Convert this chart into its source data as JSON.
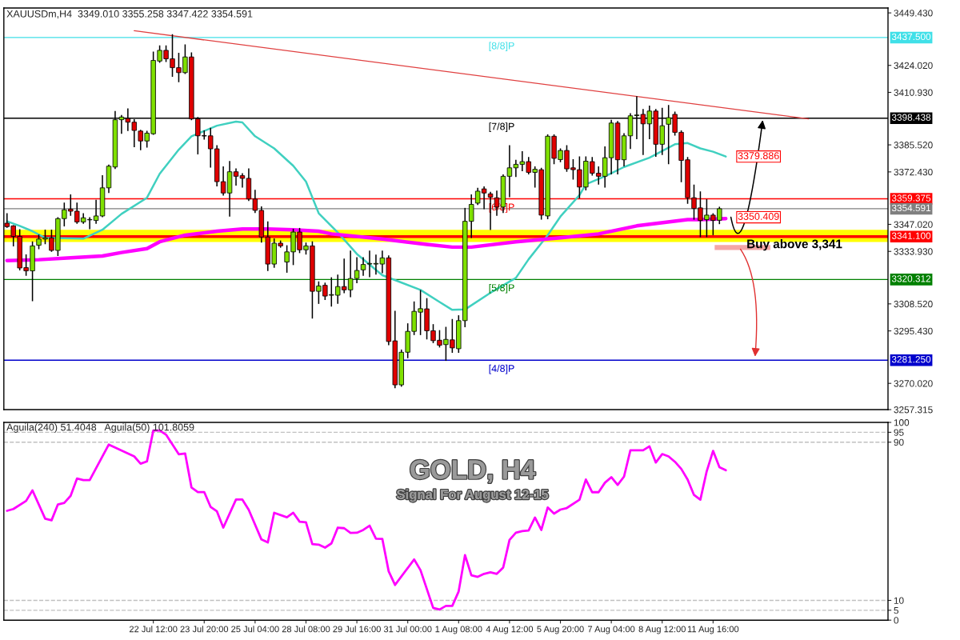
{
  "chart_data": [
    {
      "type": "candlestick",
      "title": "XAUUSDm,H4  3349.010 3355.258 3347.422 3354.591",
      "tick_labels": "y",
      "categories": [
        null,
        null,
        null,
        null,
        null,
        null,
        null,
        null,
        null,
        null,
        null,
        null,
        null,
        null,
        null,
        null,
        null,
        null,
        null,
        null,
        null,
        null,
        null,
        null,
        null,
        null,
        null,
        null,
        null,
        null,
        null,
        null,
        null,
        null,
        null,
        null,
        null,
        null,
        null,
        null,
        null,
        null,
        null,
        null,
        null,
        null,
        null,
        null,
        null,
        null,
        null,
        null,
        null,
        null,
        null,
        null,
        null,
        null,
        null,
        null,
        null,
        null,
        null,
        null,
        null,
        null,
        null,
        null,
        null,
        null,
        null,
        null,
        null,
        null,
        null,
        null,
        null,
        null,
        null,
        null,
        null,
        null,
        null,
        null,
        null,
        null,
        null,
        null,
        null,
        null,
        null,
        null,
        null,
        null,
        null,
        null,
        null,
        null,
        null,
        null,
        null,
        null,
        null,
        null,
        null,
        null,
        null,
        null,
        null,
        null,
        null,
        null,
        null,
        null,
        null,
        null,
        null,
        null,
        null,
        null,
        null,
        null,
        null,
        null,
        null,
        null,
        null,
        null,
        null,
        null,
        null,
        null,
        null,
        null,
        null,
        null,
        null,
        null,
        null
      ],
      "ohlc": [
        [
          3347.6,
          3352.1,
          3345.7,
          3345.9
        ],
        [
          3346.3,
          3346.3,
          3336.6,
          3341.2
        ],
        [
          3341.2,
          3344.4,
          3325.0,
          3325.9
        ],
        [
          3326.1,
          3332.2,
          3322.4,
          3324.5
        ],
        [
          3324.5,
          3338.5,
          3310.1,
          3336.6
        ],
        [
          3336.9,
          3341.8,
          3335.3,
          3339.9
        ],
        [
          3339.9,
          3344.2,
          3337.7,
          3340.5
        ],
        [
          3340.5,
          3344.2,
          3334.0,
          3334.4
        ],
        [
          3334.4,
          3350.2,
          3332.0,
          3349.8
        ],
        [
          3349.8,
          3357.3,
          3346.3,
          3354.1
        ],
        [
          3354.4,
          3361.2,
          3351.5,
          3353.4
        ],
        [
          3353.4,
          3357.3,
          3347.6,
          3348.2
        ],
        [
          3348.2,
          3352.1,
          3347.6,
          3350.2
        ],
        [
          3349.2,
          3350.2,
          3345.0,
          3349.4
        ],
        [
          3348.9,
          3358.6,
          3347.6,
          3351.1
        ],
        [
          3351.1,
          3370.5,
          3350.8,
          3364.7
        ],
        [
          3364.7,
          3375.7,
          3362.5,
          3375.2
        ],
        [
          3374.8,
          3401.6,
          3374.1,
          3397.7
        ],
        [
          3397.7,
          3399.7,
          3391.2,
          3399.0
        ],
        [
          3398.3,
          3402.9,
          3392.5,
          3396.5
        ],
        [
          3396.5,
          3397.7,
          3384.7,
          3392.5
        ],
        [
          3392.2,
          3392.5,
          3383.2,
          3387.4
        ],
        [
          3387.4,
          3392.0,
          3384.5,
          3391.2
        ],
        [
          3390.9,
          3430.4,
          3390.7,
          3426.4
        ],
        [
          3426.1,
          3433.4,
          3425.6,
          3431.3
        ],
        [
          3431.3,
          3433.4,
          3425.9,
          3427.2
        ],
        [
          3427.2,
          3438.8,
          3418.8,
          3422.9
        ],
        [
          3422.9,
          3429.8,
          3416.2,
          3420.5
        ],
        [
          3420.5,
          3433.9,
          3420.1,
          3428.1
        ],
        [
          3428.1,
          3430.0,
          3397.8,
          3398.1
        ],
        [
          3398.1,
          3398.7,
          3381.2,
          3389.9
        ],
        [
          3389.9,
          3392.2,
          3388.4,
          3389.8
        ],
        [
          3389.9,
          3393.5,
          3374.8,
          3383.6
        ],
        [
          3383.6,
          3385.1,
          3365.7,
          3367.7
        ],
        [
          3367.7,
          3374.8,
          3361.2,
          3362.2
        ],
        [
          3362.2,
          3377.4,
          3351.1,
          3372.5
        ],
        [
          3372.5,
          3373.8,
          3366.1,
          3370.3
        ],
        [
          3370.6,
          3371.5,
          3365.1,
          3369.3
        ],
        [
          3369.3,
          3373.8,
          3358.6,
          3359.3
        ],
        [
          3359.3,
          3363.5,
          3352.8,
          3353.8
        ],
        [
          3353.8,
          3355.4,
          3338.5,
          3340.9
        ],
        [
          3340.9,
          3348.2,
          3324.7,
          3327.8
        ],
        [
          3327.8,
          3339.9,
          3326.3,
          3337.9
        ],
        [
          3337.9,
          3338.9,
          3336.0,
          3336.6
        ],
        [
          3328.8,
          3336.6,
          3323.9,
          3333.7
        ],
        [
          3333.7,
          3344.6,
          3327.6,
          3343.3
        ],
        [
          3343.3,
          3345.0,
          3333.4,
          3334.7
        ],
        [
          3334.7,
          3337.9,
          3332.7,
          3336.6
        ],
        [
          3336.6,
          3338.5,
          3301.7,
          3314.6
        ],
        [
          3314.6,
          3319.1,
          3308.8,
          3317.2
        ],
        [
          3317.5,
          3318.5,
          3310.7,
          3312.3
        ],
        [
          3312.7,
          3321.1,
          3307.5,
          3313.0
        ],
        [
          3312.7,
          3322.4,
          3308.8,
          3316.9
        ],
        [
          3316.9,
          3330.1,
          3314.0,
          3315.3
        ],
        [
          3315.3,
          3334.0,
          3312.0,
          3320.8
        ],
        [
          3320.8,
          3330.8,
          3318.8,
          3324.7
        ],
        [
          3325.0,
          3330.8,
          3322.4,
          3327.6
        ],
        [
          3327.8,
          3334.0,
          3321.7,
          3328.1
        ],
        [
          3327.8,
          3332.1,
          3323.0,
          3328.1
        ],
        [
          3327.8,
          3334.0,
          3323.7,
          3330.8
        ],
        [
          3330.8,
          3331.7,
          3288.8,
          3290.3
        ],
        [
          3290.6,
          3304.9,
          3268.0,
          3269.3
        ],
        [
          3269.3,
          3286.1,
          3268.7,
          3285.1
        ],
        [
          3285.1,
          3298.8,
          3282.5,
          3295.2
        ],
        [
          3295.2,
          3309.4,
          3293.7,
          3304.9
        ],
        [
          3304.5,
          3314.9,
          3293.7,
          3306.2
        ],
        [
          3306.1,
          3311.0,
          3291.6,
          3295.5
        ],
        [
          3295.5,
          3298.4,
          3289.8,
          3290.7
        ],
        [
          3290.9,
          3295.5,
          3287.7,
          3288.5
        ],
        [
          3288.8,
          3297.1,
          3281.2,
          3291.3
        ],
        [
          3291.1,
          3300.9,
          3285.1,
          3287.2
        ],
        [
          3286.8,
          3302.7,
          3285.1,
          3300.4
        ],
        [
          3300.4,
          3354.7,
          3297.5,
          3348.5
        ],
        [
          3348.5,
          3361.2,
          3340.7,
          3356.7
        ],
        [
          3357.3,
          3364.4,
          3356.7,
          3363.1
        ],
        [
          3364.2,
          3365.1,
          3354.7,
          3362.2
        ],
        [
          3361.8,
          3362.5,
          3344.6,
          3360.2
        ],
        [
          3359.9,
          3363.1,
          3351.5,
          3355.4
        ],
        [
          3355.4,
          3370.9,
          3352.8,
          3370.3
        ],
        [
          3370.3,
          3385.1,
          3360.5,
          3374.4
        ],
        [
          3374.4,
          3378.0,
          3370.3,
          3376.1
        ],
        [
          3376.1,
          3382.2,
          3373.1,
          3377.4
        ],
        [
          3377.4,
          3379.3,
          3371.5,
          3372.2
        ],
        [
          3372.2,
          3374.8,
          3365.1,
          3373.7
        ],
        [
          3373.5,
          3374.1,
          3349.6,
          3351.5
        ],
        [
          3351.1,
          3390.3,
          3349.8,
          3389.7
        ],
        [
          3389.7,
          3390.3,
          3376.5,
          3379.0
        ],
        [
          3378.4,
          3383.5,
          3377.4,
          3382.8
        ],
        [
          3382.8,
          3385.1,
          3372.8,
          3373.9
        ],
        [
          3374.4,
          3378.3,
          3369.0,
          3373.5
        ],
        [
          3373.5,
          3379.6,
          3359.9,
          3365.1
        ],
        [
          3365.1,
          3379.6,
          3363.8,
          3377.6
        ],
        [
          3377.4,
          3379.3,
          3370.9,
          3371.8
        ],
        [
          3371.8,
          3374.8,
          3366.6,
          3370.3
        ],
        [
          3370.3,
          3384.5,
          3365.1,
          3379.3
        ],
        [
          3379.3,
          3397.4,
          3371.5,
          3396.1
        ],
        [
          3396.1,
          3396.8,
          3371.5,
          3378.3
        ],
        [
          3378.3,
          3390.9,
          3375.4,
          3389.9
        ],
        [
          3389.9,
          3400.6,
          3383.8,
          3399.6
        ],
        [
          3399.7,
          3408.8,
          3388.6,
          3400.0
        ],
        [
          3400.3,
          3402.6,
          3380.9,
          3395.7
        ],
        [
          3395.7,
          3404.2,
          3388.6,
          3401.9
        ],
        [
          3401.9,
          3402.6,
          3380.0,
          3385.8
        ],
        [
          3385.8,
          3403.2,
          3380.9,
          3394.8
        ],
        [
          3395.5,
          3404.5,
          3376.5,
          3398.7
        ],
        [
          3400.3,
          3401.3,
          3390.3,
          3391.6
        ],
        [
          3391.6,
          3392.2,
          3367.7,
          3378.0
        ],
        [
          3378.3,
          3379.3,
          3357.3,
          3359.9
        ],
        [
          3359.9,
          3366.0,
          3349.6,
          3354.7
        ],
        [
          3355.0,
          3362.7,
          3341.1,
          3348.9
        ],
        [
          3349.3,
          3358.9,
          3341.1,
          3351.5
        ],
        [
          3351.5,
          3352.1,
          3342.1,
          3348.9
        ],
        [
          3349.01,
          3355.258,
          3347.422,
          3354.591
        ],
        null,
        null,
        null,
        null,
        null,
        null,
        null,
        null,
        null,
        null,
        null,
        null,
        null,
        null,
        null,
        null,
        null,
        null,
        null,
        null,
        null,
        null,
        null,
        null,
        null,
        null
      ],
      "series": [
        {
          "type": "line",
          "color": "#40d0c0",
          "values": [
            3348.5,
            null,
            3346.3,
            null,
            3343.7,
            null,
            3340.5,
            null,
            null,
            null,
            null,
            null,
            3340.1,
            null,
            null,
            3344.4,
            null,
            null,
            3352.1,
            null,
            null,
            null,
            3359.9,
            null,
            3371.5,
            null,
            null,
            3383.2,
            null,
            3389.7,
            null,
            null,
            null,
            3394.8,
            null,
            null,
            3396.8,
            3396.4,
            null,
            3389.7,
            null,
            null,
            3383.8,
            null,
            null,
            3375.4,
            null,
            3367.7,
            null,
            3352.4,
            null,
            null,
            3343.1,
            null,
            null,
            3332.7,
            null,
            null,
            null,
            3322.4,
            null,
            null,
            null,
            null,
            null,
            3315.3,
            null,
            null,
            3309.4,
            null,
            3305.6,
            null,
            3305.8,
            null,
            null,
            null,
            3313.9,
            null,
            null,
            null,
            3321.1,
            null,
            3330.1,
            null,
            null,
            3341.8,
            null,
            3350.8,
            null,
            null,
            3361.2,
            3366.4,
            null,
            null,
            3370.3,
            null,
            null,
            3374.8,
            null,
            null,
            null,
            3379.3,
            null,
            null,
            null,
            3385.8,
            null,
            3386.4,
            null,
            3383.8,
            null,
            3382.2,
            null,
            3379.9,
            null,
            null,
            null,
            null,
            null,
            null,
            null,
            null,
            null,
            null,
            null,
            null,
            null,
            null,
            null,
            null,
            null,
            null,
            null,
            null,
            null,
            null,
            null,
            null,
            null
          ]
        },
        {
          "type": "line",
          "color": "#ff00ff",
          "values": [
            3329.5,
            null,
            null,
            null,
            null,
            3329.9,
            null,
            null,
            null,
            null,
            3330.8,
            null,
            null,
            null,
            null,
            3331.7,
            null,
            null,
            3333.4,
            null,
            null,
            null,
            3335.3,
            null,
            3338.6,
            null,
            null,
            null,
            3341.8,
            null,
            null,
            null,
            null,
            3343.7,
            null,
            null,
            null,
            3344.8,
            null,
            null,
            null,
            3344.8,
            null,
            null,
            null,
            3344.4,
            null,
            null,
            null,
            3343.7,
            null,
            3342.4,
            null,
            null,
            null,
            null,
            null,
            null,
            null,
            3339.9,
            null,
            null,
            null,
            null,
            null,
            null,
            3337.3,
            null,
            null,
            null,
            3336.0,
            null,
            null,
            3336.0,
            null,
            null,
            null,
            null,
            null,
            null,
            3338.6,
            null,
            null,
            null,
            null,
            null,
            null,
            3340.5,
            null,
            null,
            null,
            null,
            null,
            3342.4,
            null,
            null,
            null,
            null,
            null,
            3346.3,
            null,
            null,
            null,
            null,
            null,
            null,
            null,
            3349.3,
            null,
            3349.3,
            null,
            null,
            null,
            3349.8,
            null,
            null,
            null,
            null,
            null,
            null,
            null,
            null,
            null,
            null,
            null,
            null,
            null,
            null,
            null,
            null,
            null,
            null,
            null,
            null,
            null,
            null,
            null,
            null,
            null
          ]
        },
        {
          "type": "line",
          "color": "#e04040",
          "values": [
            null,
            null,
            null,
            null,
            null,
            null,
            null,
            null,
            null,
            null,
            null,
            null,
            null,
            null,
            null,
            null,
            null,
            null,
            null,
            null,
            3440.8,
            null,
            null,
            null,
            null,
            null,
            null,
            null,
            null,
            null,
            null,
            null,
            null,
            null,
            null,
            null,
            null,
            null,
            null,
            null,
            null,
            null,
            null,
            null,
            null,
            null,
            null,
            null,
            null,
            null,
            null,
            null,
            null,
            null,
            null,
            null,
            null,
            null,
            null,
            null,
            null,
            null,
            null,
            null,
            null,
            null,
            null,
            null,
            null,
            null,
            null,
            null,
            null,
            null,
            null,
            null,
            null,
            null,
            null,
            null,
            null,
            null,
            null,
            null,
            null,
            null,
            null,
            null,
            null,
            null,
            null,
            null,
            null,
            null,
            null,
            null,
            null,
            null,
            null,
            null,
            null,
            null,
            null,
            null,
            null,
            null,
            null,
            null,
            null,
            null,
            null,
            null,
            null,
            null,
            null,
            null,
            null,
            null,
            null,
            null,
            null,
            null,
            null,
            null,
            null,
            null,
            3398.1,
            null,
            null,
            null,
            null,
            null,
            null,
            null,
            null,
            null,
            null,
            null,
            null
          ]
        }
      ],
      "ylim": [
        3257.315,
        3451.8
      ],
      "yticks": [
        {
          "value": 3449.43,
          "label": "3449.430"
        },
        {
          "value": 3424.02,
          "label": "3424.020"
        },
        {
          "value": 3410.93,
          "label": "3410.930"
        },
        {
          "value": 3385.52,
          "label": "3385.520"
        },
        {
          "value": 3372.43,
          "label": "3372.430"
        },
        {
          "value": 3347.02,
          "label": "3347.020"
        },
        {
          "value": 3333.93,
          "label": "3333.930"
        },
        {
          "value": 3308.52,
          "label": "3308.520"
        },
        {
          "value": 3295.43,
          "label": "3295.430"
        },
        {
          "value": 3270.02,
          "label": "3270.020"
        },
        {
          "value": 3257.315,
          "label": "3257.315"
        }
      ],
      "ref_lines": [
        {
          "axis": "y",
          "value": 3437.5,
          "label": "3437.500",
          "color": "#40e0e8",
          "line_style": "solid"
        },
        {
          "axis": "y",
          "value": 3398.438,
          "label": "3398.438",
          "color": "#000000",
          "line_style": "solid"
        },
        {
          "axis": "y",
          "value": 3359.375,
          "label": "3359.375",
          "color": "#ff0000",
          "line_style": "solid"
        },
        {
          "axis": "y",
          "value": 3354.591,
          "label": "3354.591",
          "color": "#808080",
          "line_style": "solid"
        },
        {
          "axis": "y",
          "value": 3341.1,
          "label": "3341.100",
          "color": "#ff0000",
          "line_style": "solid"
        },
        {
          "axis": "y",
          "value": 3320.312,
          "label": "3320.312",
          "color": "#008000",
          "line_style": "solid"
        },
        {
          "axis": "y",
          "value": 3281.25,
          "label": "3281.250",
          "color": "#0000cc",
          "line_style": "solid"
        }
      ],
      "bands": [
        {
          "axis": "y",
          "from": 3338.5,
          "to": 3344.4,
          "color": "#ffff00"
        }
      ],
      "annotations": [
        {
          "text": "[8/8]P",
          "y": 3437.5
        },
        {
          "text": "[7/8]P",
          "y": 3398.438
        },
        {
          "text": "[6/8]P",
          "y": 3359.375
        },
        {
          "text": "[5/8]P",
          "y": 3320.312
        },
        {
          "text": "[4/8]P",
          "y": 3281.25
        },
        "3379.886",
        "3350.409",
        "Buy above 3,341"
      ]
    },
    {
      "type": "line",
      "title": "Aguila(240) 51.4048   Aguila(50) 101.8059",
      "categories": [
        null,
        null,
        null,
        null,
        null,
        null,
        null,
        null,
        null,
        null,
        null,
        null,
        null,
        null,
        null,
        null,
        null,
        null,
        null,
        null,
        null,
        null,
        null,
        "22 Jul 12:00",
        null,
        null,
        null,
        null,
        null,
        null,
        null,
        "23 Jul 20:00",
        null,
        null,
        null,
        null,
        null,
        null,
        null,
        "25 Jul 04:00",
        null,
        null,
        null,
        null,
        null,
        null,
        null,
        "28 Jul 08:00",
        null,
        null,
        null,
        null,
        null,
        null,
        null,
        "29 Jul 16:00",
        null,
        null,
        null,
        null,
        null,
        null,
        null,
        "31 Jul 00:00",
        null,
        null,
        null,
        null,
        null,
        null,
        null,
        "1 Aug 08:00",
        null,
        null,
        null,
        null,
        null,
        null,
        null,
        "4 Aug 12:00",
        null,
        null,
        null,
        null,
        null,
        null,
        null,
        "5 Aug 20:00",
        null,
        null,
        null,
        null,
        null,
        null,
        null,
        "7 Aug 04:00",
        null,
        null,
        null,
        null,
        null,
        null,
        null,
        "8 Aug 12:00",
        null,
        null,
        null,
        null,
        null,
        null,
        null,
        "11 Aug 16:00",
        null,
        null,
        null,
        null,
        null,
        null,
        null,
        null,
        null,
        null,
        null,
        null,
        null,
        null,
        null,
        null,
        null,
        null,
        null,
        null,
        null,
        null,
        null,
        null,
        null,
        null,
        null
      ],
      "series": [
        {
          "color": "#ff00ff",
          "values": [
            55.3,
            56.2,
            null,
            60.3,
            65.6,
            null,
            51.3,
            50.5,
            58.5,
            59.3,
            62.9,
            71.6,
            70.8,
            70.8,
            null,
            null,
            88.8,
            null,
            null,
            null,
            82.8,
            79.1,
            80.3,
            95.9,
            95.9,
            93.8,
            null,
            83.9,
            84.3,
            67.1,
            64.8,
            64.8,
            57.3,
            55.0,
            46.8,
            null,
            61.0,
            61.0,
            55.8,
            null,
            40.8,
            39.3,
            54.3,
            null,
            52.0,
            54.3,
            49.8,
            49.5,
            38.5,
            38.2,
            36.7,
            38.8,
            46.8,
            46.5,
            44.1,
            44.2,
            45.6,
            47.8,
            41.2,
            41.1,
            24.7,
            17.8,
            null,
            null,
            30.7,
            25.3,
            null,
            6.2,
            5.4,
            7.2,
            7.2,
            14.5,
            32.9,
            22.7,
            21.9,
            23.4,
            24.2,
            23.4,
            26.6,
            40.6,
            44.2,
            45.0,
            45.3,
            51.9,
            45.6,
            57.0,
            53.9,
            55.9,
            56.7,
            null,
            60.9,
            71.1,
            64.7,
            64.7,
            69.5,
            72.3,
            68.4,
            72.6,
            85.9,
            null,
            85.9,
            87.9,
            79.7,
            84.0,
            82.8,
            80.1,
            76.5,
            71.1,
            63.3,
            60.9,
            75.3,
            85.6,
            77.3,
            75.8,
            null,
            null,
            null,
            null,
            null,
            null,
            null,
            null,
            null,
            null,
            null,
            null,
            null,
            null,
            null,
            null,
            null,
            null,
            null,
            null,
            null,
            null,
            null,
            null,
            null
          ]
        }
      ],
      "ylim": [
        0,
        100
      ],
      "yticks": [
        100,
        95,
        90,
        10,
        5,
        0
      ],
      "ref_lines": [
        {
          "axis": "y",
          "value": 95,
          "color": "#c0c0c0",
          "line_style": "dashed"
        },
        {
          "axis": "y",
          "value": 90,
          "color": "#c0c0c0",
          "line_style": "dashed"
        },
        {
          "axis": "y",
          "value": 10,
          "color": "#c0c0c0",
          "line_style": "dashed"
        },
        {
          "axis": "y",
          "value": 5,
          "color": "#c0c0c0",
          "line_style": "dashed"
        }
      ],
      "annotations": [
        "GOLD, H4",
        "Signal For August 12-15"
      ]
    }
  ]
}
